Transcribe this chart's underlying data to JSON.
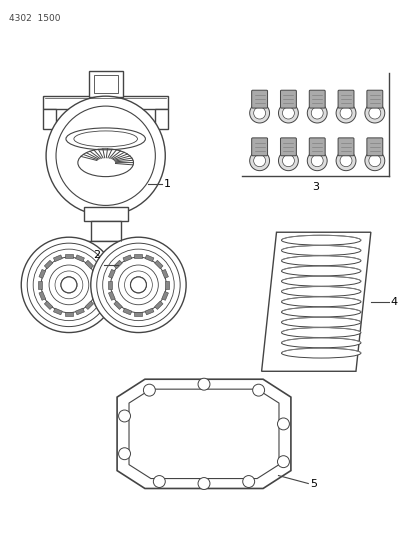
{
  "title": "4302  1500",
  "background_color": "#ffffff",
  "line_color": "#444444",
  "label_color": "#000000",
  "fig_width": 4.08,
  "fig_height": 5.33,
  "dpi": 100
}
